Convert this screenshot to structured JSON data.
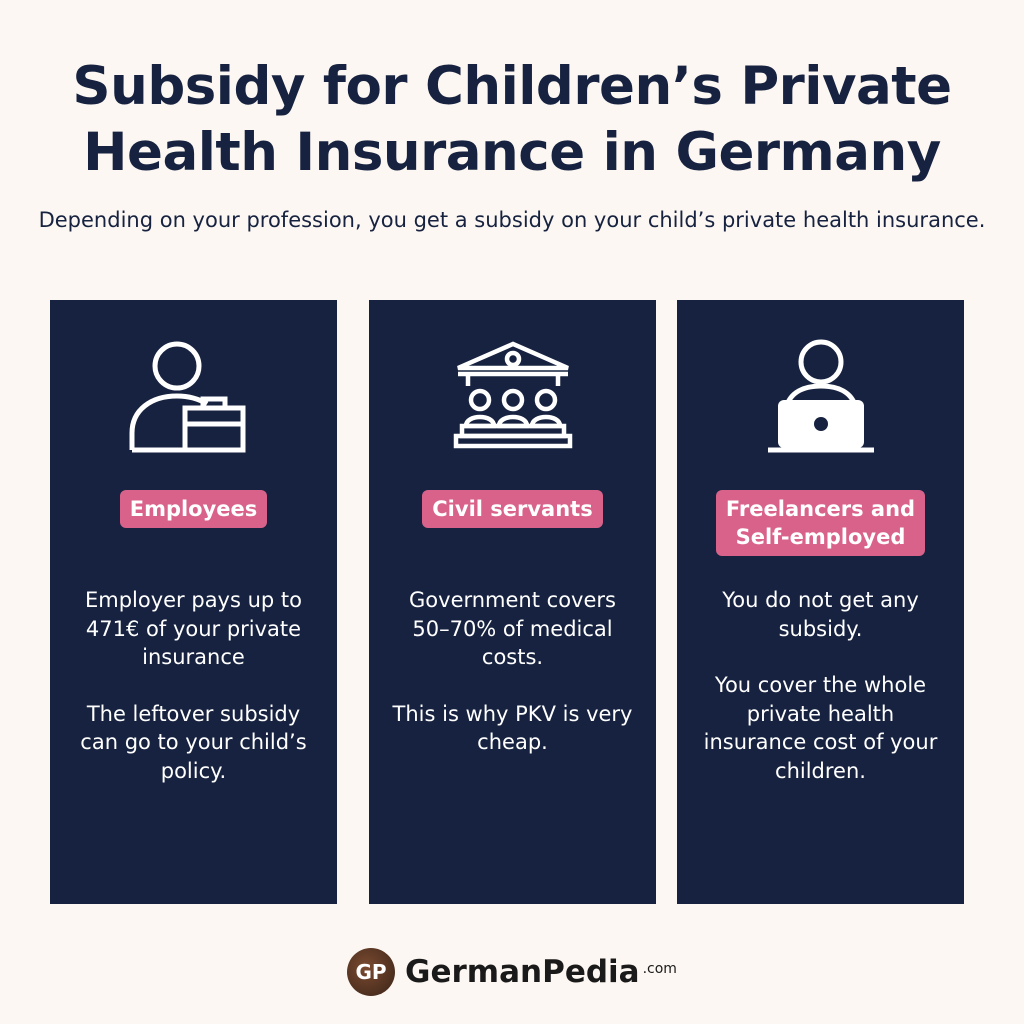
{
  "title": "Subsidy for Children’s Private Health Insurance in Germany",
  "subtitle": "Depending on your profession, you get a subsidy on your child’s private health insurance.",
  "cards": [
    {
      "icon": "employee-briefcase-icon",
      "badge": "Employees",
      "paragraphs": [
        "Employer pays up to 471€ of your private insurance",
        "The leftover subsidy can go to your child’s policy."
      ]
    },
    {
      "icon": "government-building-icon",
      "badge": "Civil servants",
      "paragraphs": [
        "Government covers 50–70% of medical costs.",
        "This is why PKV is very cheap."
      ]
    },
    {
      "icon": "person-laptop-icon",
      "badge": "Freelancers and\nSelf-employed",
      "paragraphs": [
        "You do not get any subsidy.",
        "You cover the whole private health insurance cost of your children."
      ]
    }
  ],
  "footer": {
    "logo_text": "GP",
    "brand": "GermanPedia",
    "tld": ".com"
  },
  "colors": {
    "background": "#fcf7f2",
    "navy": "#16223f",
    "badge_pink": "#d9628a"
  }
}
